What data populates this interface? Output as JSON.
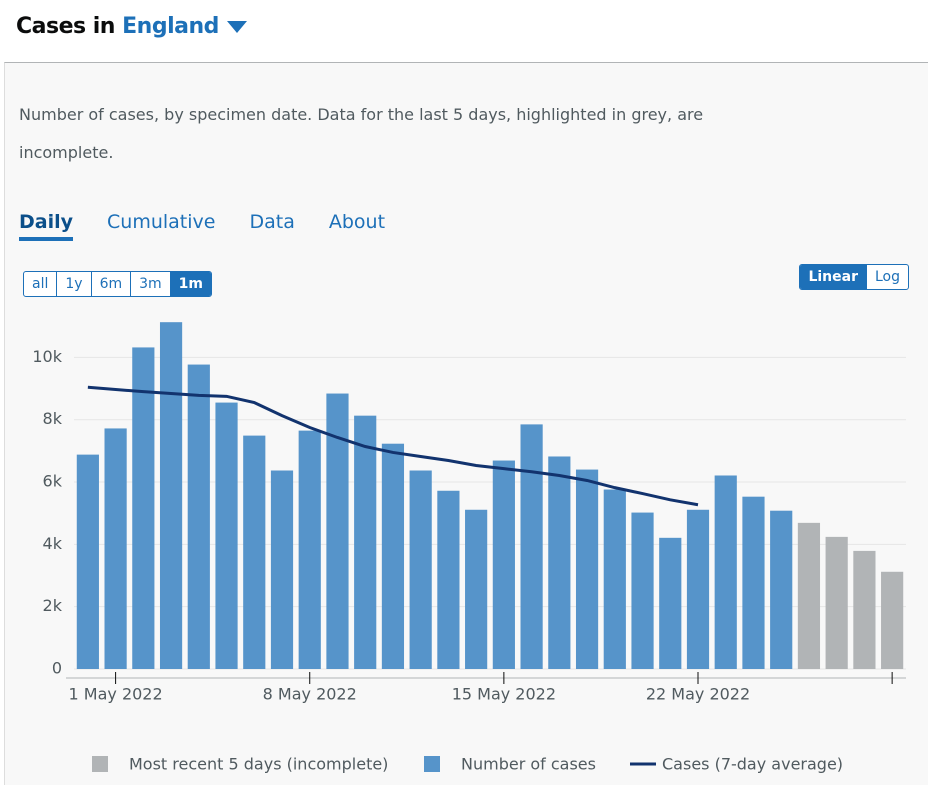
{
  "header": {
    "prefix": "Cases in",
    "area": "England"
  },
  "description": "Number of cases, by specimen date. Data for the last 5 days, highlighted in grey, are incomplete.",
  "tabs": [
    "Daily",
    "Cumulative",
    "Data",
    "About"
  ],
  "range_buttons": [
    "all",
    "1y",
    "6m",
    "3m",
    "1m"
  ],
  "scale_buttons": [
    "Linear",
    "Log"
  ],
  "chart_data": {
    "type": "bar",
    "scale": "linear",
    "grid": true,
    "categories": [
      null,
      "1 May 2022",
      null,
      null,
      null,
      null,
      null,
      null,
      "8 May 2022",
      null,
      null,
      null,
      null,
      null,
      null,
      "15 May 2022",
      null,
      null,
      null,
      null,
      null,
      null,
      "22 May 2022",
      null,
      null,
      null,
      null,
      null,
      null,
      null
    ],
    "ylim": [
      0,
      11200
    ],
    "yticks": [
      0,
      {
        "value": 2000,
        "label": "2k"
      },
      {
        "value": 4000,
        "label": "4k"
      },
      {
        "value": 6000,
        "label": "6k"
      },
      {
        "value": 8000,
        "label": "8k"
      },
      {
        "value": 10000,
        "label": "10k"
      }
    ],
    "series": [
      {
        "name": "Most recent 5 days (incomplete)",
        "type": "bar",
        "color": "#b1b4b6",
        "values": [
          null,
          null,
          null,
          null,
          null,
          null,
          null,
          null,
          null,
          null,
          null,
          null,
          null,
          null,
          null,
          null,
          null,
          null,
          null,
          null,
          null,
          null,
          null,
          null,
          null,
          null,
          4690,
          4240,
          3790,
          3120
        ]
      },
      {
        "name": "Number of cases",
        "type": "bar",
        "color": "#5694ca",
        "values": [
          6880,
          7720,
          10320,
          11130,
          9770,
          8550,
          7490,
          6370,
          7650,
          8840,
          8130,
          7230,
          6370,
          5720,
          5110,
          6690,
          7850,
          6820,
          6400,
          5760,
          5020,
          4210,
          5110,
          6210,
          5530,
          5080,
          null,
          null,
          null,
          null
        ]
      },
      {
        "name": "Cases (7-day average)",
        "type": "line",
        "color": "#12336e",
        "values": [
          9040,
          8970,
          8900,
          8840,
          8780,
          8750,
          8550,
          8130,
          7750,
          7430,
          7140,
          6950,
          6820,
          6690,
          6530,
          6430,
          6330,
          6210,
          6050,
          5820,
          5630,
          5430,
          5270,
          null,
          null,
          null,
          null,
          null,
          null,
          null
        ]
      }
    ]
  }
}
